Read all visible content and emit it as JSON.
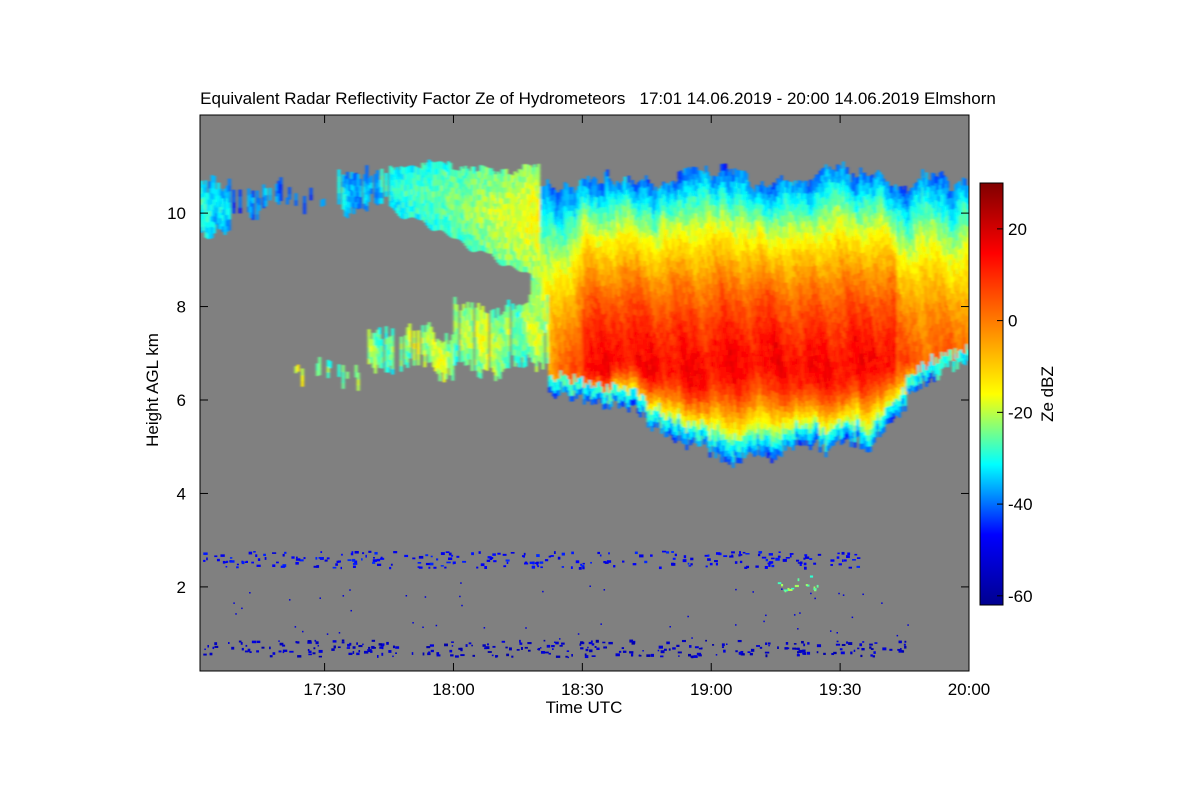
{
  "chart_data": {
    "type": "heatmap",
    "title": "Equivalent Radar Reflectivity Factor Ze of Hydrometeors   17:01 14.06.2019 - 20:00 14.06.2019 Elmshorn",
    "xlabel": "Time UTC",
    "ylabel": "Height AGL km",
    "colorbar_label": "Ze dBZ",
    "xlim_minutes_utc": [
      1021,
      1200
    ],
    "x_ticks": [
      {
        "minute": 1050,
        "label": "17:30"
      },
      {
        "minute": 1080,
        "label": "18:00"
      },
      {
        "minute": 1110,
        "label": "18:30"
      },
      {
        "minute": 1140,
        "label": "19:00"
      },
      {
        "minute": 1170,
        "label": "19:30"
      },
      {
        "minute": 1200,
        "label": "20:00"
      }
    ],
    "ylim": [
      0.2,
      12.1
    ],
    "y_ticks": [
      {
        "value": 2,
        "label": "2"
      },
      {
        "value": 4,
        "label": "4"
      },
      {
        "value": 6,
        "label": "6"
      },
      {
        "value": 8,
        "label": "8"
      },
      {
        "value": 10,
        "label": "10"
      }
    ],
    "colorbar_range": [
      -62,
      30
    ],
    "colorbar_ticks": [
      {
        "value": 20,
        "label": "20"
      },
      {
        "value": 0,
        "label": "0"
      },
      {
        "value": -20,
        "label": "-20"
      },
      {
        "value": -40,
        "label": "-40"
      },
      {
        "value": -60,
        "label": "-60"
      }
    ],
    "background_color": "#808080",
    "colormap": [
      "#00008f",
      "#0000ff",
      "#00ffff",
      "#ffff00",
      "#ff8000",
      "#ff0000",
      "#800000"
    ],
    "cloud_layers": [
      {
        "name": "upper-cirrus-left",
        "t_start": 1021,
        "t_end": 1050,
        "base_km": 9.6,
        "top_km": 10.8,
        "ze_dbz": -35
      },
      {
        "name": "upper-cirrus-mid",
        "t_start": 1055,
        "t_end": 1100,
        "base_km": 9.2,
        "top_km": 11.0,
        "ze_dbz": -28
      },
      {
        "name": "mid-level-patches",
        "t_start": 1043,
        "t_end": 1105,
        "base_km": 6.3,
        "top_km": 7.6,
        "ze_dbz": -25
      },
      {
        "name": "main-anvil",
        "t_start": 1100,
        "t_end": 1200,
        "base_km": 4.6,
        "top_km": 11.0,
        "ze_dbz": 12
      }
    ],
    "low_level_clutter": [
      {
        "t_start": 1021,
        "t_end": 1175,
        "height_km": 2.6,
        "ze_dbz": -48
      },
      {
        "t_start": 1155,
        "t_end": 1165,
        "height_km": 2.1,
        "ze_dbz": -25
      },
      {
        "t_start": 1021,
        "t_end": 1185,
        "height_km": 0.7,
        "ze_dbz": -55
      }
    ]
  }
}
